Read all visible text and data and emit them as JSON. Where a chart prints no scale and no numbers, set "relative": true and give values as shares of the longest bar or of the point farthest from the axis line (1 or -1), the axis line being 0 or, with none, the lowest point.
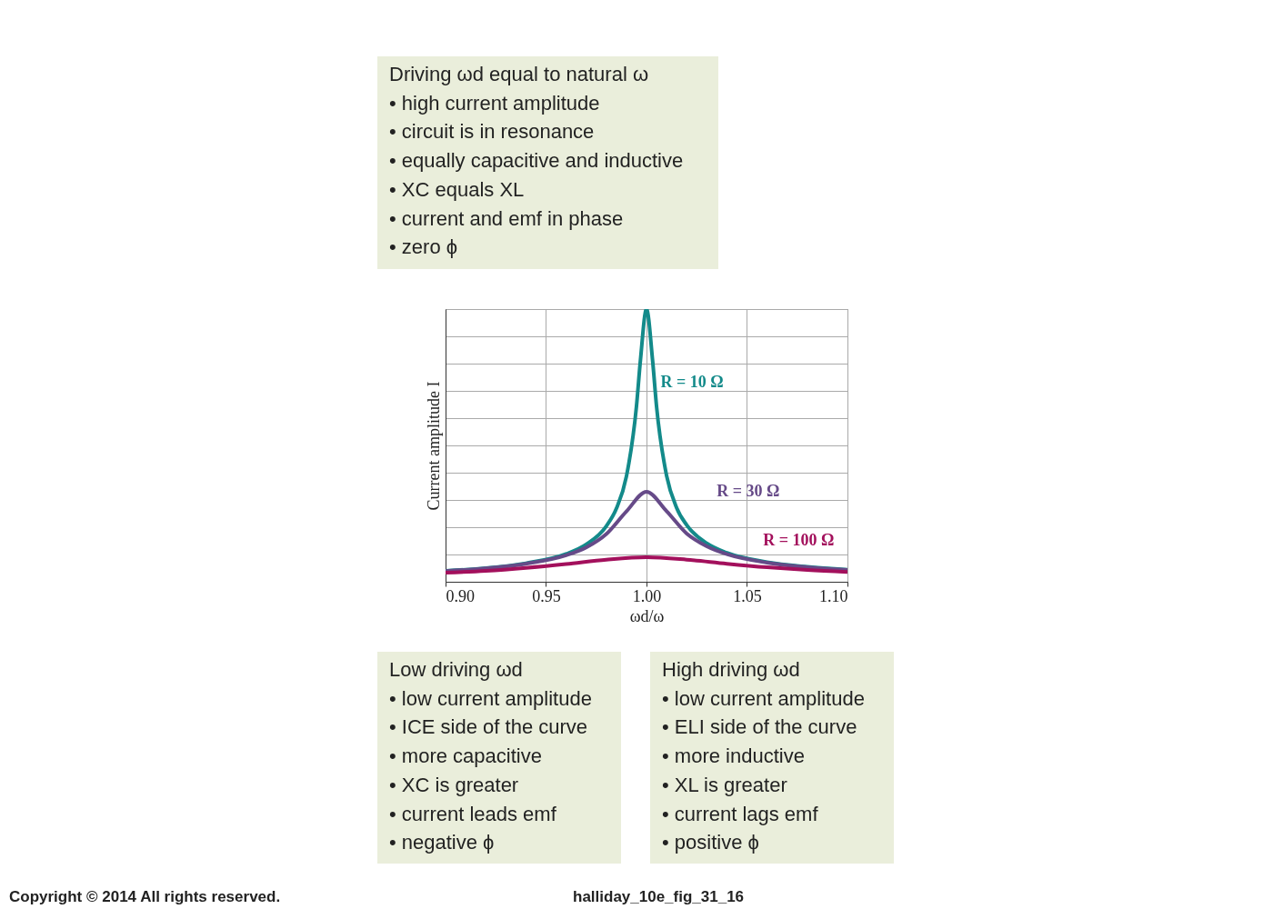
{
  "chart_data": {
    "type": "line",
    "relative": true,
    "xlabel": "ωd/ω",
    "ylabel": "Current amplitude I",
    "xlim": [
      0.9,
      1.1
    ],
    "xticks": [
      {
        "value": 0.9,
        "label": "0.90"
      },
      {
        "value": 0.95,
        "label": "0.95"
      },
      {
        "value": 1.0,
        "label": "1.00"
      },
      {
        "value": 1.05,
        "label": "1.05"
      },
      {
        "value": 1.1,
        "label": "1.10"
      }
    ],
    "grid": true,
    "legend": false,
    "marker": "none",
    "line_style": "solid",
    "series": [
      {
        "name": "R = 10 Ω",
        "color": "#138a8a",
        "x": [
          0.9,
          0.92,
          0.94,
          0.96,
          0.97,
          0.98,
          0.985,
          0.99,
          0.995,
          0.997,
          1.0,
          1.003,
          1.005,
          1.01,
          1.015,
          1.02,
          1.03,
          1.04,
          1.06,
          1.08,
          1.1
        ],
        "values": [
          0.04,
          0.05,
          0.068,
          0.102,
          0.137,
          0.204,
          0.268,
          0.386,
          0.643,
          0.814,
          1.0,
          0.814,
          0.643,
          0.389,
          0.271,
          0.208,
          0.141,
          0.106,
          0.072,
          0.055,
          0.044
        ]
      },
      {
        "name": "R = 30 Ω",
        "color": "#664a88",
        "x": [
          0.9,
          0.92,
          0.94,
          0.96,
          0.97,
          0.98,
          0.99,
          1.0,
          1.01,
          1.02,
          1.03,
          1.04,
          1.06,
          1.08,
          1.1
        ],
        "values": [
          0.039,
          0.049,
          0.066,
          0.097,
          0.126,
          0.175,
          0.258,
          0.33,
          0.259,
          0.177,
          0.13,
          0.101,
          0.07,
          0.053,
          0.043
        ]
      },
      {
        "name": "R = 100 Ω",
        "color": "#a3105c",
        "x": [
          0.9,
          0.92,
          0.94,
          0.96,
          0.98,
          1.0,
          1.02,
          1.04,
          1.06,
          1.08,
          1.1
        ],
        "values": [
          0.033,
          0.04,
          0.051,
          0.065,
          0.081,
          0.09,
          0.081,
          0.066,
          0.053,
          0.043,
          0.036
        ]
      }
    ],
    "annotations": [
      "Driving ωd equal to natural ω\n• high current amplitude\n• circuit is in resonance\n• equally capacitive and inductive\n• XC equals XL\n• current and emf in phase\n• zero ϕ",
      "Low driving ωd\n• low current amplitude\n• ICE side of the curve\n• more capacitive\n• XC is greater\n• current leads emf\n• negative ϕ",
      "High driving ωd\n• low current amplitude\n• ELI side of the curve\n• more inductive\n• XL is greater\n• current lags emf\n• positive ϕ",
      "Copyright © 2014 All rights reserved.",
      "halliday_10e_fig_31_16"
    ]
  }
}
